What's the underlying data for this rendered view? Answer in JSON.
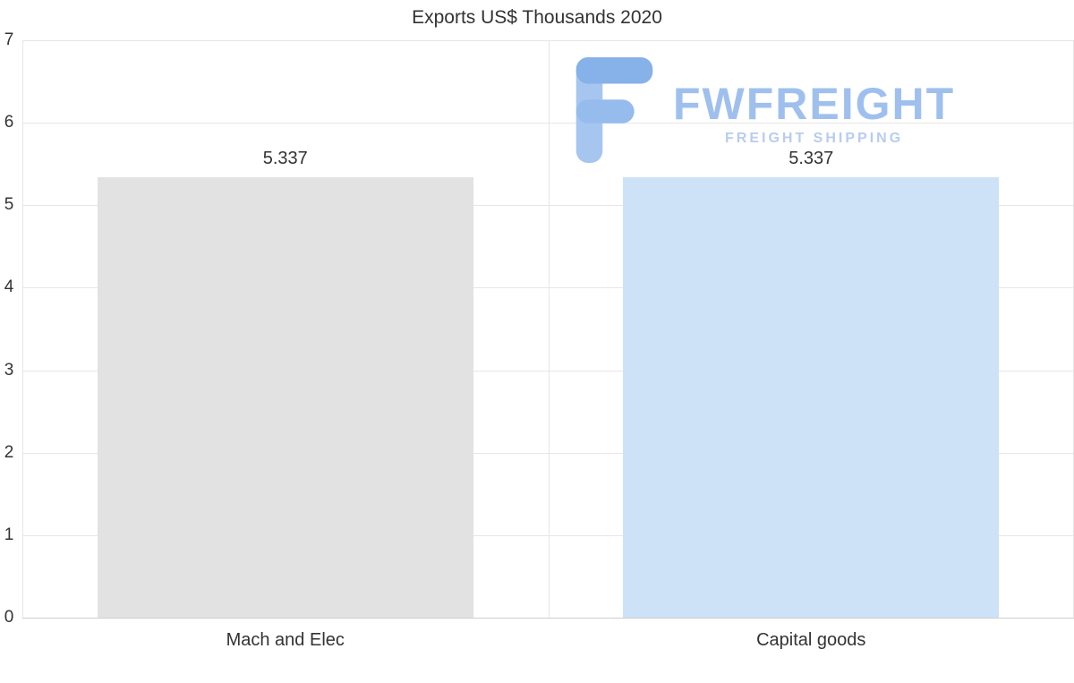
{
  "chart_data": {
    "type": "bar",
    "title": "Exports US$ Thousands 2020",
    "categories": [
      "Mach and Elec",
      "Capital goods"
    ],
    "values": [
      5.337,
      5.337
    ],
    "value_labels": [
      "5.337",
      "5.337"
    ],
    "bar_colors": [
      "#e2e2e2",
      "#cde2f7"
    ],
    "ylim": [
      0,
      7
    ],
    "yticks": [
      0,
      1,
      2,
      3,
      4,
      5,
      6,
      7
    ],
    "grid": true,
    "legend": "none",
    "xlabel": "",
    "ylabel": ""
  },
  "watermark": {
    "name": "FWFREIGHT",
    "tagline": "FREIGHT SHIPPING",
    "color": "#9fc0ee"
  }
}
